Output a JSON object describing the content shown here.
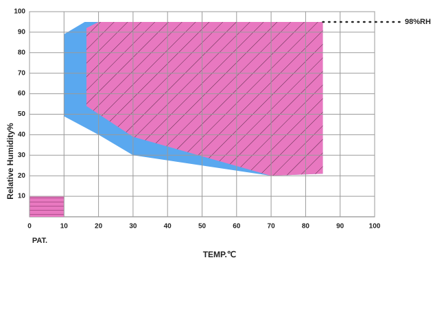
{
  "chart_data": {
    "type": "region",
    "x_label": "TEMP.℃",
    "y_label": "Relative Humidity%",
    "xlim": [
      0,
      100
    ],
    "ylim": [
      0,
      100
    ],
    "xticks": [
      0,
      10,
      20,
      30,
      40,
      50,
      60,
      70,
      80,
      90,
      100
    ],
    "yticks": [
      10,
      20,
      30,
      40,
      50,
      60,
      70,
      80,
      90,
      100
    ],
    "grid": true,
    "series": [
      {
        "color": "#5aa8ef",
        "hatch": "none",
        "x": [
          10,
          10,
          16,
          85,
          85,
          70,
          66,
          30,
          20
        ],
        "values": [
          49,
          89,
          95,
          95,
          21,
          20,
          21,
          30,
          40
        ]
      },
      {
        "color": "#e878c0",
        "hatch": "diagonal",
        "x": [
          16.5,
          16.5,
          20,
          85,
          85,
          70,
          30
        ],
        "values": [
          54,
          92,
          95,
          95,
          21,
          20,
          39
        ]
      },
      {
        "color": "#e878c0",
        "hatch": "horizontal",
        "x": [
          0,
          10,
          10,
          0
        ],
        "values": [
          0,
          0,
          10,
          10
        ]
      }
    ],
    "annotations": [
      {
        "text": "98%RH"
      },
      {
        "text": "PAT."
      }
    ]
  }
}
